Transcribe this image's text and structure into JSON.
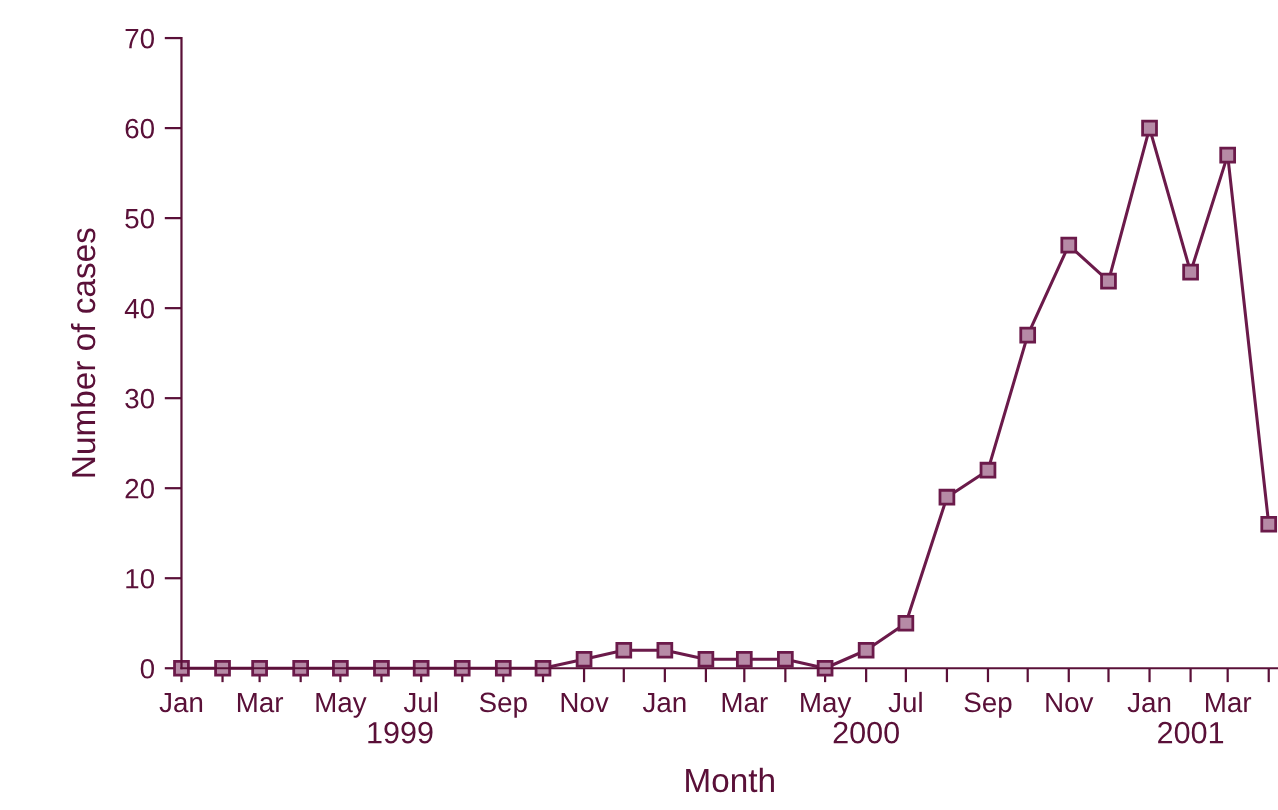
{
  "chart_data": {
    "type": "line",
    "xlabel": "Month",
    "ylabel": "Number of cases",
    "x": [
      "1999-01",
      "1999-02",
      "1999-03",
      "1999-04",
      "1999-05",
      "1999-06",
      "1999-07",
      "1999-08",
      "1999-09",
      "1999-10",
      "1999-11",
      "1999-12",
      "2000-01",
      "2000-02",
      "2000-03",
      "2000-04",
      "2000-05",
      "2000-06",
      "2000-07",
      "2000-08",
      "2000-09",
      "2000-10",
      "2000-11",
      "2000-12",
      "2001-01",
      "2001-02",
      "2001-03",
      "2001-04"
    ],
    "series": [
      {
        "color": "#6b1a4a",
        "values": [
          0,
          0,
          0,
          0,
          0,
          0,
          0,
          0,
          0,
          0,
          1,
          2,
          2,
          1,
          1,
          1,
          0,
          2,
          5,
          19,
          22,
          37,
          47,
          43,
          60,
          44,
          57,
          16
        ]
      }
    ],
    "marker": "square",
    "line_style": "solid",
    "grid": false,
    "legend": false,
    "xlim": [
      "1999-01-01",
      "2001-04-08"
    ],
    "xticks": [
      {
        "value": "1999-01",
        "label": "Jan"
      },
      {
        "value": "1999-02",
        "label": null
      },
      {
        "value": "1999-03",
        "label": "Mar"
      },
      {
        "value": "1999-04",
        "label": null
      },
      {
        "value": "1999-05",
        "label": "May"
      },
      {
        "value": "1999-06",
        "label": null
      },
      {
        "value": "1999-07",
        "label": "Jul"
      },
      {
        "value": "1999-08",
        "label": null
      },
      {
        "value": "1999-09",
        "label": "Sep"
      },
      {
        "value": "1999-10",
        "label": null
      },
      {
        "value": "1999-11",
        "label": "Nov"
      },
      {
        "value": "1999-12",
        "label": null
      },
      {
        "value": "2000-01",
        "label": "Jan"
      },
      {
        "value": "2000-02",
        "label": null
      },
      {
        "value": "2000-03",
        "label": "Mar"
      },
      {
        "value": "2000-04",
        "label": null
      },
      {
        "value": "2000-05",
        "label": "May"
      },
      {
        "value": "2000-06",
        "label": null
      },
      {
        "value": "2000-07",
        "label": "Jul"
      },
      {
        "value": "2000-08",
        "label": null
      },
      {
        "value": "2000-09",
        "label": "Sep"
      },
      {
        "value": "2000-10",
        "label": null
      },
      {
        "value": "2000-11",
        "label": "Nov"
      },
      {
        "value": "2000-12",
        "label": null
      },
      {
        "value": "2001-01",
        "label": "Jan"
      },
      {
        "value": "2001-02",
        "label": null
      },
      {
        "value": "2001-03",
        "label": "Mar"
      },
      {
        "value": "2001-04",
        "label": null
      }
    ],
    "ylim": [
      0,
      70
    ],
    "yticks": [
      0,
      10,
      20,
      30,
      40,
      50,
      60,
      70
    ],
    "x2lim": [
      "1999-01-01",
      "2001-04-08"
    ],
    "x2ticks": [
      {
        "value": "1999-06-15",
        "label": "1999"
      },
      {
        "value": "2000-06-01",
        "label": "2000"
      },
      {
        "value": "2001-02-01",
        "label": "2001"
      }
    ]
  }
}
